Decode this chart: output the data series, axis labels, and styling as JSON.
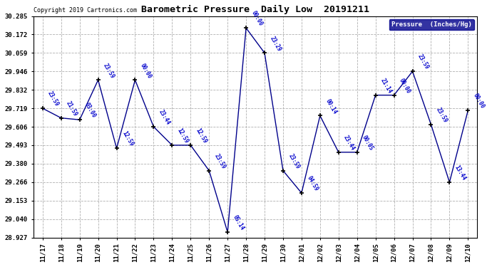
{
  "title": "Barometric Pressure  Daily Low  20191211",
  "copyright": "Copyright 2019 Cartronics.com",
  "legend_label": "Pressure  (Inches/Hg)",
  "background_color": "#ffffff",
  "plot_bg_color": "#ffffff",
  "line_color": "#00008b",
  "marker_color": "#000000",
  "label_color": "#0000cc",
  "dates": [
    "11/17",
    "11/18",
    "11/19",
    "11/20",
    "11/21",
    "11/22",
    "11/23",
    "11/24",
    "11/25",
    "11/26",
    "11/27",
    "11/28",
    "11/29",
    "11/30",
    "12/01",
    "12/02",
    "12/03",
    "12/04",
    "12/05",
    "12/06",
    "12/07",
    "12/08",
    "12/09",
    "12/10"
  ],
  "values": [
    29.719,
    29.66,
    29.649,
    29.893,
    29.474,
    29.893,
    29.606,
    29.493,
    29.493,
    29.337,
    28.96,
    30.212,
    30.059,
    29.337,
    29.2,
    29.674,
    29.45,
    29.45,
    29.8,
    29.8,
    29.946,
    29.62,
    29.266,
    29.706
  ],
  "time_labels": [
    "23:59",
    "21:59",
    "03:00",
    "23:59",
    "12:59",
    "00:00",
    "23:44",
    "12:59",
    "12:59",
    "23:59",
    "05:14",
    "00:00",
    "23:29",
    "23:59",
    "04:59",
    "00:14",
    "23:44",
    "00:05",
    "21:14",
    "00:00",
    "23:59",
    "23:59",
    "13:44",
    "00:00"
  ],
  "ylim": [
    28.927,
    30.285
  ],
  "yticks": [
    28.927,
    29.04,
    29.153,
    29.266,
    29.38,
    29.493,
    29.606,
    29.719,
    29.832,
    29.946,
    30.059,
    30.172,
    30.285
  ],
  "figsize": [
    6.9,
    3.75
  ],
  "dpi": 100
}
